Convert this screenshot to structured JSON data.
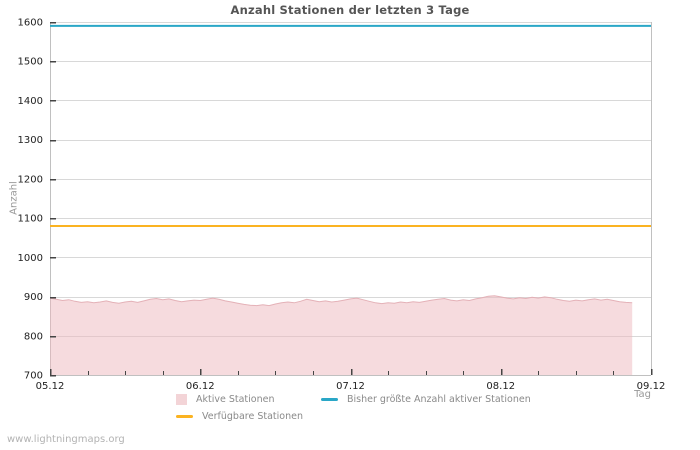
{
  "page": {
    "watermark": "www.lightningmaps.org",
    "background": "#ffffff"
  },
  "chart_data": {
    "type": "area",
    "title": "Anzahl Stationen der letzten 3 Tage",
    "xlabel": "Tag",
    "ylabel": "Anzahl",
    "ylim": [
      700,
      1600
    ],
    "yticks": [
      700,
      800,
      900,
      1000,
      1100,
      1200,
      1300,
      1400,
      1500,
      1600
    ],
    "xticks": [
      {
        "d": 0,
        "label": "05.12"
      },
      {
        "d": 1,
        "label": "06.12"
      },
      {
        "d": 2,
        "label": "07.12"
      },
      {
        "d": 3,
        "label": "08.12"
      },
      {
        "d": 4,
        "label": "09.12"
      }
    ],
    "x_minor_step_days": 0.25,
    "grid": "horizontal",
    "legend_position": "bottom",
    "colors": {
      "active_fill": "#eeb7bd",
      "active_edge": "#e3aeb4",
      "active_legend_swatch": "#f3d4d7",
      "max_line": "#2aa7c7",
      "available_line": "#fbb321",
      "gridline": "#d8d8d8",
      "axis_border": "#c0c0c0",
      "tick": "#444444",
      "tick_label": "#222222"
    },
    "series": [
      {
        "name": "Aktive Stationen",
        "type": "area",
        "x_start_day": 0,
        "x_end_day": 3.875,
        "values": [
          896,
          893,
          890,
          892,
          888,
          885,
          887,
          884,
          886,
          889,
          885,
          883,
          886,
          888,
          885,
          889,
          893,
          895,
          892,
          894,
          890,
          887,
          889,
          891,
          890,
          893,
          896,
          893,
          889,
          886,
          883,
          880,
          878,
          877,
          879,
          877,
          881,
          884,
          886,
          884,
          888,
          893,
          890,
          887,
          889,
          886,
          888,
          891,
          894,
          896,
          892,
          888,
          884,
          882,
          884,
          883,
          886,
          884,
          887,
          885,
          888,
          891,
          893,
          895,
          891,
          889,
          892,
          890,
          894,
          897,
          901,
          902,
          899,
          896,
          894,
          897,
          895,
          898,
          896,
          899,
          897,
          893,
          890,
          888,
          891,
          889,
          892,
          894,
          891,
          893,
          890,
          887,
          885,
          884
        ]
      },
      {
        "name": "Bisher größte Anzahl aktiver Stationen",
        "type": "hline",
        "value": 1590
      },
      {
        "name": "Verfügbare Stationen",
        "type": "hline",
        "value": 1080
      }
    ]
  }
}
